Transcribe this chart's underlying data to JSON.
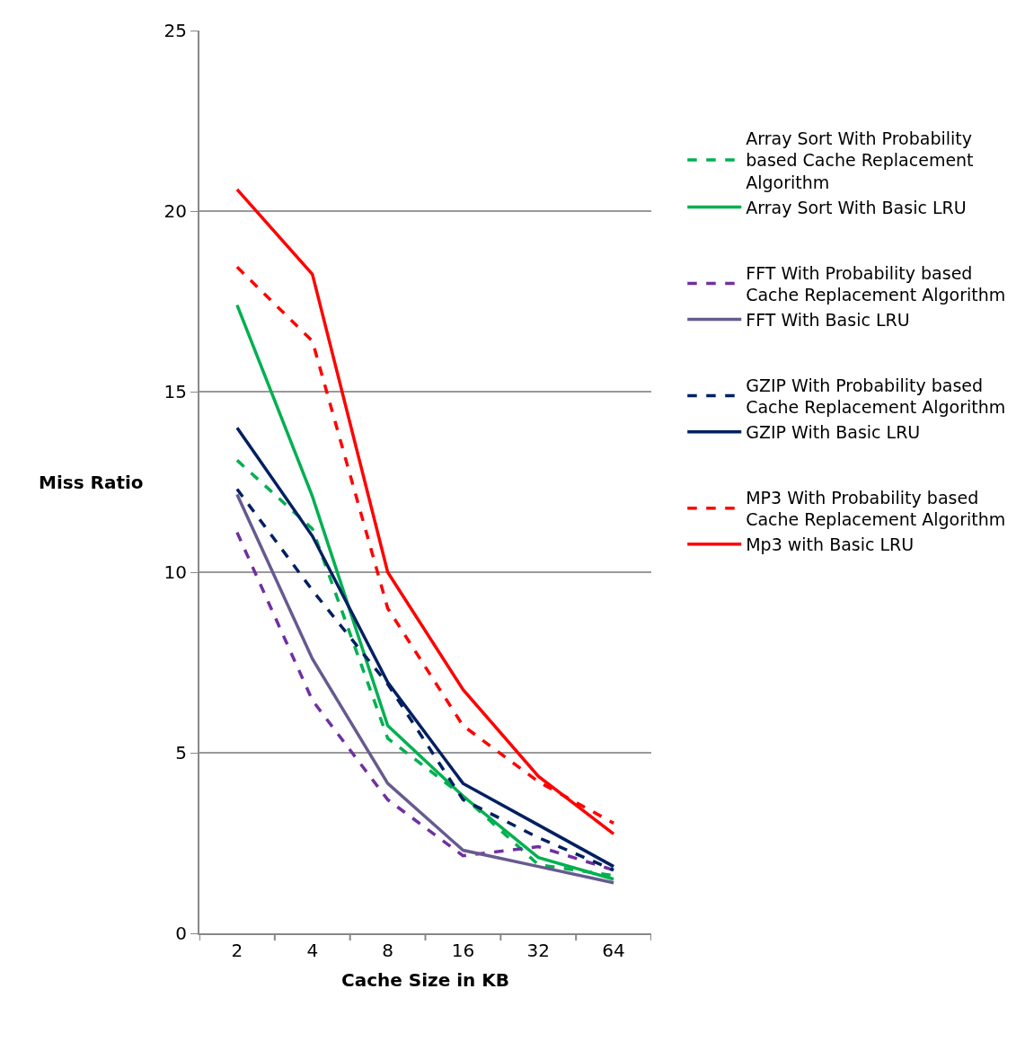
{
  "chart_data": {
    "type": "line",
    "xlabel": "Cache Size in KB",
    "ylabel": "Miss Ratio",
    "categories": [
      "2",
      "4",
      "8",
      "16",
      "32",
      "64"
    ],
    "ylim": [
      0,
      25
    ],
    "yticks": [
      0,
      5,
      10,
      15,
      20,
      25
    ],
    "grid": "y",
    "legend": "right",
    "marker": "none",
    "series": [
      {
        "name": "Array Sort With Probability based Cache Replacement Algorithm",
        "color": "#00b050",
        "line_style": "dashed",
        "values": [
          13.1,
          11.2,
          5.4,
          3.8,
          1.9,
          1.6
        ]
      },
      {
        "name": "Array Sort With Basic LRU",
        "color": "#00b050",
        "line_style": "solid",
        "values": [
          17.4,
          12.1,
          5.75,
          3.8,
          2.1,
          1.5
        ]
      },
      {
        "name": "FFT With Probability based Cache Replacement Algorithm",
        "color": "#7030a0",
        "line_style": "dashed",
        "values": [
          11.1,
          6.45,
          3.7,
          2.15,
          2.4,
          1.75
        ]
      },
      {
        "name": "FFT With Basic LRU",
        "color": "#675a8f",
        "line_style": "solid",
        "values": [
          12.15,
          7.6,
          4.15,
          2.3,
          1.85,
          1.4
        ]
      },
      {
        "name": "GZIP With Probability based Cache Replacement Algorithm",
        "color": "#002060",
        "line_style": "dashed",
        "values": [
          12.3,
          9.5,
          6.9,
          3.7,
          2.65,
          1.75
        ]
      },
      {
        "name": "GZIP With Basic LRU",
        "color": "#002060",
        "line_style": "solid",
        "values": [
          14.0,
          11.0,
          6.95,
          4.15,
          3.0,
          1.85
        ]
      },
      {
        "name": "MP3 With Probability based Cache Replacement Algorithm",
        "color": "#ff0000",
        "line_style": "dashed",
        "values": [
          18.45,
          16.4,
          9.0,
          5.75,
          4.2,
          3.05
        ]
      },
      {
        "name": "Mp3 with Basic LRU",
        "color": "#ff0000",
        "line_style": "solid",
        "values": [
          20.6,
          18.25,
          10.0,
          6.75,
          4.35,
          2.75
        ]
      }
    ]
  }
}
